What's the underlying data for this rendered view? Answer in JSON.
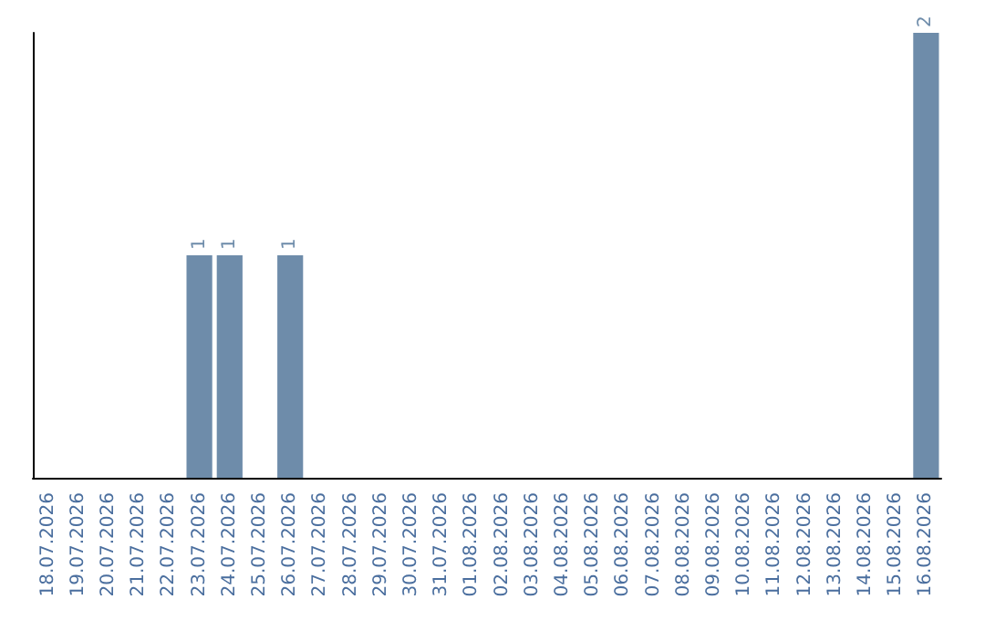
{
  "chart_data": {
    "type": "bar",
    "categories": [
      "18.07.2026",
      "19.07.2026",
      "20.07.2026",
      "21.07.2026",
      "22.07.2026",
      "23.07.2026",
      "24.07.2026",
      "25.07.2026",
      "26.07.2026",
      "27.07.2026",
      "28.07.2026",
      "29.07.2026",
      "30.07.2026",
      "31.07.2026",
      "01.08.2026",
      "02.08.2026",
      "03.08.2026",
      "04.08.2026",
      "05.08.2026",
      "06.08.2026",
      "07.08.2026",
      "08.08.2026",
      "09.08.2026",
      "10.08.2026",
      "11.08.2026",
      "12.08.2026",
      "13.08.2026",
      "14.08.2026",
      "15.08.2026",
      "16.08.2026"
    ],
    "values": [
      0,
      0,
      0,
      0,
      0,
      1,
      1,
      0,
      1,
      0,
      0,
      0,
      0,
      0,
      0,
      0,
      0,
      0,
      0,
      0,
      0,
      0,
      0,
      0,
      0,
      0,
      0,
      0,
      0,
      2
    ],
    "value_labels": [
      null,
      null,
      null,
      null,
      null,
      "1",
      "1",
      null,
      "1",
      null,
      null,
      null,
      null,
      null,
      null,
      null,
      null,
      null,
      null,
      null,
      null,
      null,
      null,
      null,
      null,
      null,
      null,
      null,
      null,
      "2"
    ],
    "color": "#6e8caa",
    "grid": false,
    "tick_labels": "x"
  }
}
